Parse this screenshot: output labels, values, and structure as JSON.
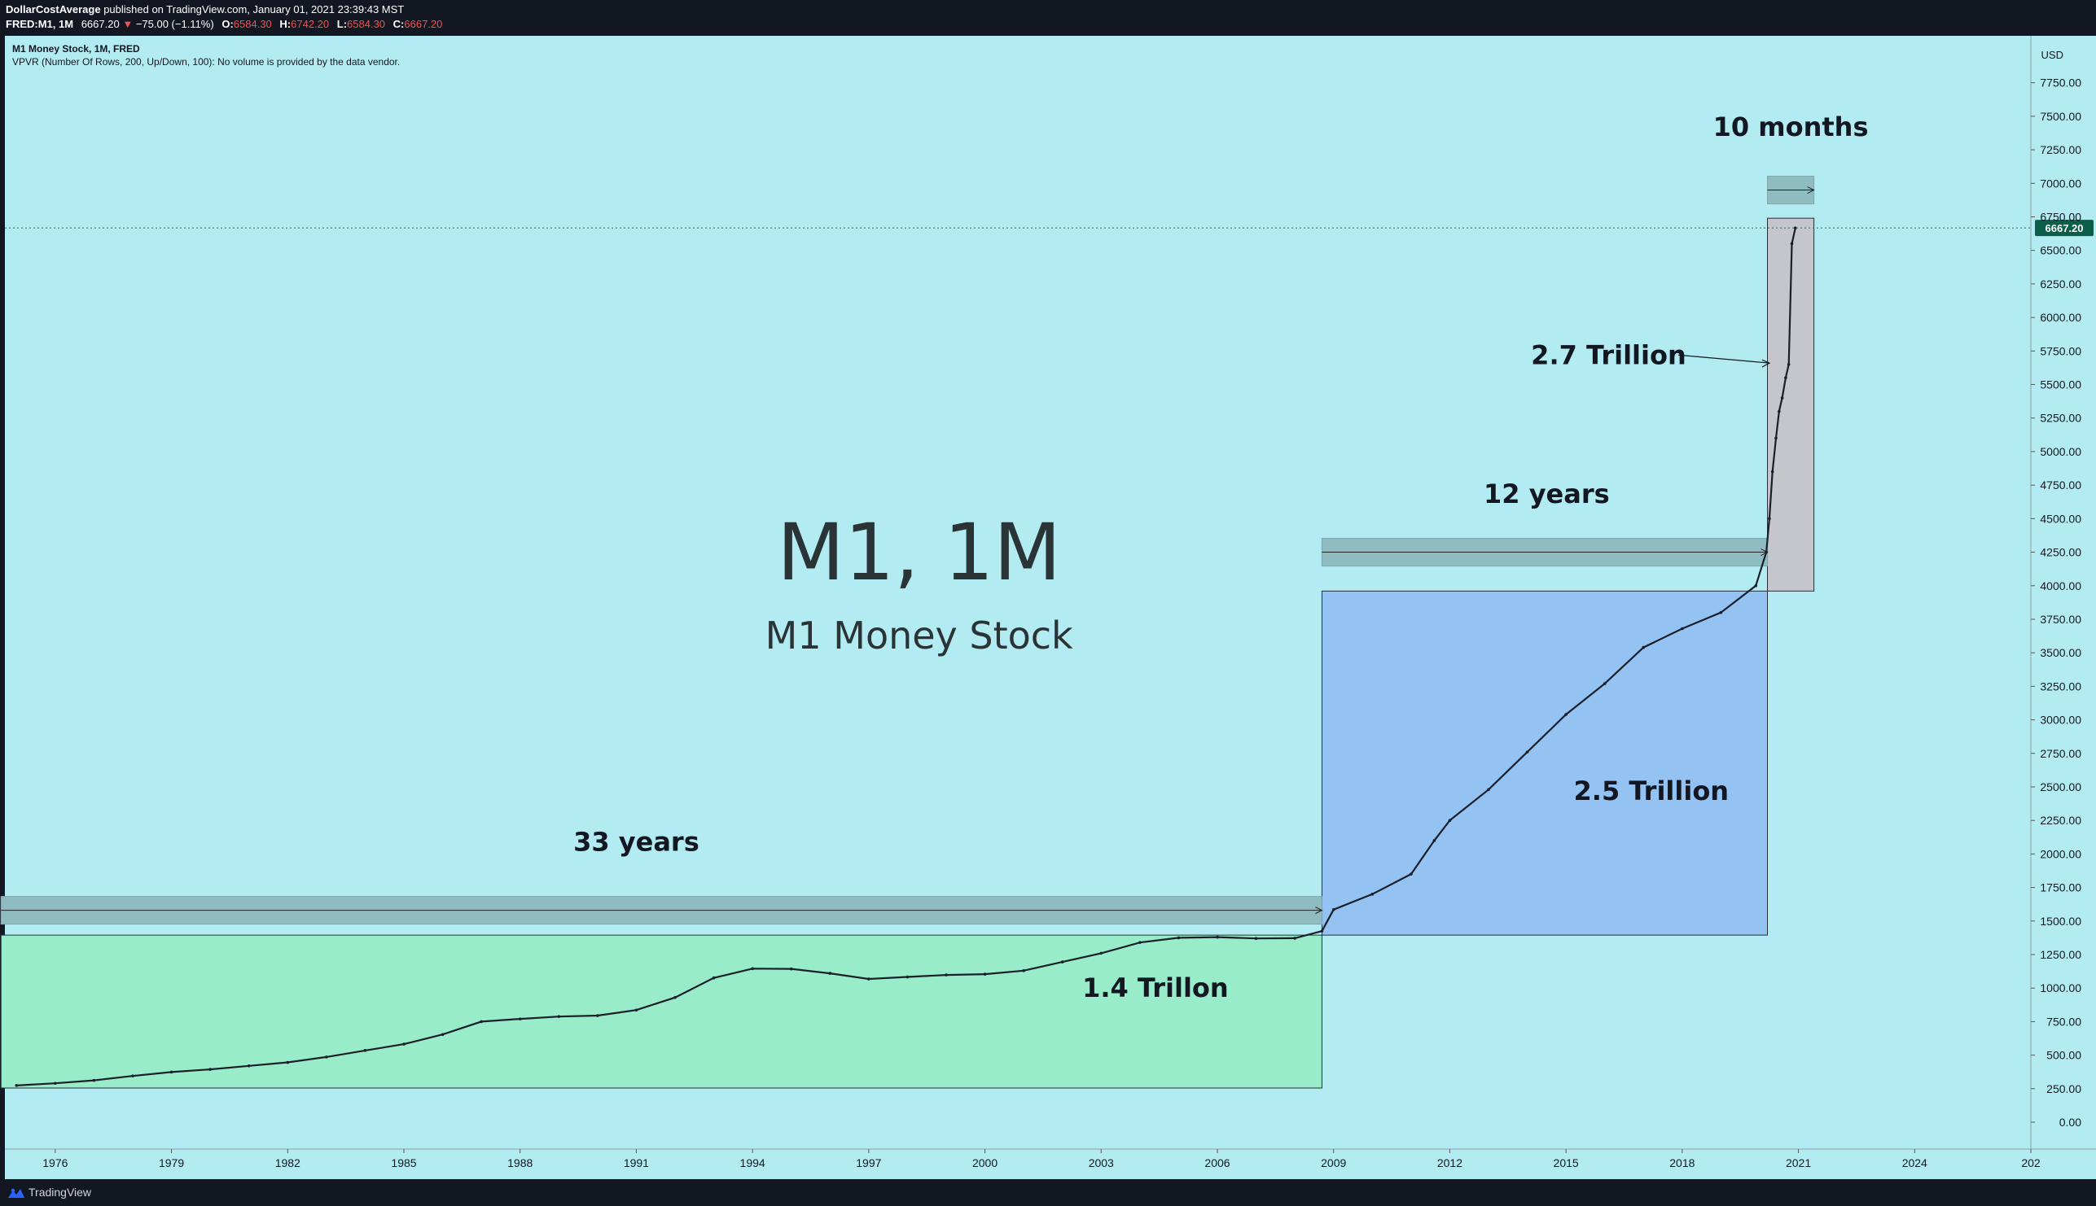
{
  "header": {
    "publisher": "DollarCostAverage",
    "published_text": "published on TradingView.com, January 01, 2021 23:39:43 MST",
    "symbol": "FRED:M1, 1M",
    "last": "6667.20",
    "change": "−75.00 (−1.11%)",
    "open_label": "O:",
    "open": "6584.30",
    "high_label": "H:",
    "high": "6742.20",
    "low_label": "L:",
    "low": "6584.30",
    "close_label": "C:",
    "close": "6667.20"
  },
  "legend": {
    "line1": "M1 Money Stock, 1M, FRED",
    "line2": "VPVR (Number Of Rows, 200, Up/Down, 100): No volume is provided by the data vendor."
  },
  "watermark": {
    "title": "M1, 1M",
    "subtitle": "M1 Money Stock"
  },
  "annotations": {
    "a1": "33 years",
    "a2": "12 years",
    "a3": "10 months",
    "a4": "1.4 Trillon",
    "a5": "2.5 Trillion",
    "a6": "2.7 Trillion"
  },
  "footer": {
    "brand": "TradingView"
  },
  "colors": {
    "green_box": "#98ecc9",
    "blue_box": "#94c2f3",
    "gray_box": "#c5c6cc",
    "range_band": "#8fbcc1",
    "background": "#b2ebf2",
    "last_price": "#0b5e48"
  },
  "chart_data": {
    "type": "line",
    "title": "M1 Money Stock",
    "currency": "USD",
    "ylim": [
      -200,
      8100
    ],
    "xlim": [
      1974.7,
      2027.0
    ],
    "y_ticks": [
      "0.00",
      "250.00",
      "500.00",
      "750.00",
      "1000.00",
      "1250.00",
      "1500.00",
      "1750.00",
      "2000.00",
      "2250.00",
      "2500.00",
      "2750.00",
      "3000.00",
      "3250.00",
      "3500.00",
      "3750.00",
      "4000.00",
      "4250.00",
      "4500.00",
      "4750.00",
      "5000.00",
      "5250.00",
      "5500.00",
      "5750.00",
      "6000.00",
      "6250.00",
      "6500.00",
      "6750.00",
      "7000.00",
      "7250.00",
      "7500.00",
      "7750.00"
    ],
    "x_ticks": [
      "1976",
      "1979",
      "1982",
      "1985",
      "1988",
      "1991",
      "1994",
      "1997",
      "2000",
      "2003",
      "2006",
      "2009",
      "2012",
      "2015",
      "2018",
      "2021",
      "2024",
      "202"
    ],
    "last_value": "6667.20",
    "series": [
      {
        "x": [
          1975.0,
          1976.0,
          1977.0,
          1978.0,
          1979.0,
          1980.0,
          1981.0,
          1982.0,
          1983.0,
          1984.0,
          1985.0,
          1986.0,
          1987.0,
          1988.0,
          1989.0,
          1990.0,
          1991.0,
          1992.0,
          1993.0,
          1994.0,
          1995.0,
          1996.0,
          1997.0,
          1998.0,
          1999.0,
          2000.0,
          2001.0,
          2002.0,
          2003.0,
          2004.0,
          2005.0,
          2006.0,
          2007.0,
          2008.0,
          2008.7,
          2009.0,
          2010.0,
          2011.0,
          2011.6,
          2012.0,
          2013.0,
          2014.0,
          2015.0,
          2016.0,
          2017.0,
          2018.0,
          2019.0,
          2019.9,
          2020.17,
          2020.25,
          2020.33,
          2020.42,
          2020.5,
          2020.58,
          2020.67,
          2020.75,
          2020.83,
          2020.92
        ],
        "y": [
          274,
          290,
          312,
          345,
          374,
          394,
          420,
          446,
          486,
          535,
          582,
          654,
          750,
          770,
          788,
          795,
          836,
          930,
          1076,
          1145,
          1143,
          1110,
          1068,
          1083,
          1098,
          1104,
          1130,
          1195,
          1260,
          1340,
          1375,
          1380,
          1370,
          1372,
          1425,
          1585,
          1700,
          1850,
          2100,
          2250,
          2480,
          2760,
          3040,
          3270,
          3540,
          3680,
          3800,
          4000,
          4250,
          4500,
          4850,
          5100,
          5300,
          5400,
          5550,
          5650,
          6550,
          6667
        ]
      }
    ]
  }
}
